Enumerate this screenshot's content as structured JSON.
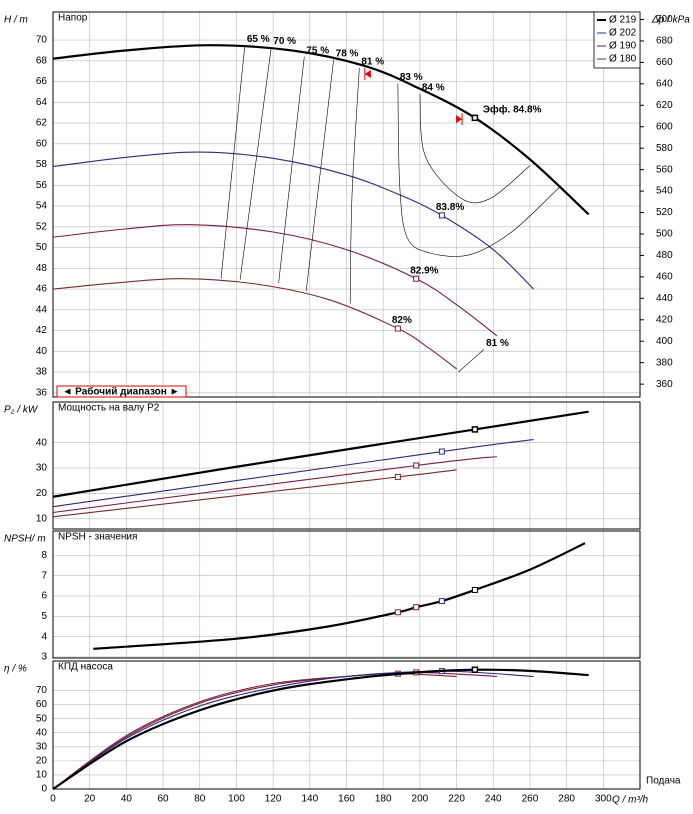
{
  "chart_data": [
    {
      "type": "line",
      "ylabel": "H / m",
      "title": "Напор",
      "y2label": "Δp / kPa",
      "ylim": [
        35.6,
        72.7
      ],
      "yticks": [
        36,
        38,
        40,
        42,
        44,
        46,
        48,
        50,
        52,
        54,
        56,
        58,
        60,
        62,
        64,
        66,
        68,
        70
      ],
      "y2lim": [
        348,
        707
      ],
      "y2ticks": [
        360,
        380,
        400,
        420,
        440,
        460,
        480,
        500,
        520,
        540,
        560,
        580,
        600,
        620,
        640,
        660,
        680,
        700
      ],
      "grid": true,
      "legend": "upper right",
      "range_label": "◄ Рабочий диапазон ►",
      "operating_range": [
        170,
        223
      ],
      "series": [
        {
          "name": "Ø 219",
          "color": "#000000",
          "width": 2,
          "x": [
            0,
            40,
            85,
            130,
            170,
            200,
            230,
            260,
            292
          ],
          "values": [
            68.2,
            69,
            69.5,
            69,
            67.5,
            65.3,
            62.5,
            58.5,
            53.2
          ],
          "marker_x": 230,
          "marker_value": 62.5,
          "marker_label": "Эфф.  84.8%"
        },
        {
          "name": "Ø 202",
          "color": "#2a2a80",
          "width": 1,
          "x": [
            0,
            40,
            80,
            120,
            160,
            190,
            212,
            240,
            262
          ],
          "values": [
            57.8,
            58.7,
            59.2,
            58.6,
            57,
            55,
            53.1,
            49.8,
            46
          ],
          "marker_x": 212,
          "marker_value": 53.1,
          "marker_label": "83.8%"
        },
        {
          "name": "Ø 190",
          "color": "#7a1a4a",
          "width": 1,
          "x": [
            0,
            40,
            75,
            120,
            160,
            198,
            220,
            242
          ],
          "values": [
            51,
            51.8,
            52.2,
            51.5,
            49.8,
            47,
            44.5,
            41.5
          ],
          "marker_x": 198,
          "marker_value": 47,
          "marker_label": "82.9%"
        },
        {
          "name": "Ø 180",
          "color": "#7a2a2a",
          "width": 1,
          "x": [
            0,
            35,
            70,
            110,
            150,
            188,
            205,
            220
          ],
          "values": [
            46,
            46.6,
            47,
            46.5,
            45,
            42.2,
            40.3,
            38.3
          ],
          "marker_x": 188,
          "marker_value": 42.2,
          "marker_label": "82%"
        }
      ],
      "iso_lines": [
        {
          "label": "65 %",
          "x": [
            104.6,
            91.6
          ],
          "values": [
            69.5,
            47.0
          ]
        },
        {
          "label": "70 %",
          "x": [
            119,
            102
          ],
          "values": [
            69.3,
            46.9
          ]
        },
        {
          "label": "75 %",
          "x": [
            137,
            123
          ],
          "values": [
            68.4,
            46.6
          ]
        },
        {
          "label": "78 %",
          "x": [
            153,
            138
          ],
          "values": [
            68.1,
            45.8
          ]
        },
        {
          "label": "81 %",
          "x": [
            167,
            163,
            162
          ],
          "values": [
            67.3,
            55,
            44.6
          ]
        },
        {
          "label": "83 %",
          "x": [
            188,
            189,
            193,
            205,
            227,
            250,
            276
          ],
          "values": [
            65.8,
            56,
            51,
            49.5,
            49.3,
            51.5,
            55.8
          ]
        },
        {
          "label": "84 %",
          "x": [
            200,
            203,
            222,
            238,
            260
          ],
          "values": [
            64.8,
            58.8,
            54.8,
            54.7,
            57.9
          ]
        },
        {
          "label": "81 %",
          "x": [
            221,
            235
          ],
          "values": [
            38.0,
            40.2
          ]
        }
      ]
    },
    {
      "type": "line",
      "ylabel": "P₂ / kW",
      "title": "Мощность на валу P2",
      "ylim": [
        6,
        56
      ],
      "yticks": [
        10,
        20,
        30,
        40
      ],
      "grid": true,
      "series": [
        {
          "color": "#000000",
          "width": 2,
          "x": [
            0,
            100,
            230,
            292
          ],
          "values": [
            18.7,
            30.5,
            45.2,
            52.2
          ],
          "marker_x": 230,
          "marker_value": 45.2
        },
        {
          "color": "#2a2a80",
          "width": 1,
          "x": [
            0,
            212,
            262
          ],
          "values": [
            14.8,
            36.5,
            41.2
          ],
          "marker_x": 212,
          "marker_value": 36.5
        },
        {
          "color": "#7a1a4a",
          "width": 1,
          "x": [
            0,
            198,
            242
          ],
          "values": [
            12.5,
            31,
            34.5
          ],
          "marker_x": 198,
          "marker_value": 31
        },
        {
          "color": "#7a2a2a",
          "width": 1,
          "x": [
            0,
            188,
            220
          ],
          "values": [
            10.8,
            26.5,
            29.3
          ],
          "marker_x": 188,
          "marker_value": 26.5
        }
      ]
    },
    {
      "type": "line",
      "ylabel": "NPSH/ m",
      "title": "NPSH - значения",
      "ylim": [
        2.95,
        9.2
      ],
      "yticks": [
        3,
        4,
        5,
        6,
        7,
        8
      ],
      "grid": true,
      "series": [
        {
          "color": "#000000",
          "width": 2,
          "x": [
            22,
            100,
            150,
            188,
            198,
            212,
            230,
            260,
            290
          ],
          "values": [
            3.4,
            3.9,
            4.5,
            5.2,
            5.45,
            5.75,
            6.3,
            7.3,
            8.6
          ]
        }
      ],
      "points": [
        {
          "color": "#7a2a2a",
          "x": 188,
          "value": 5.2
        },
        {
          "color": "#7a1a4a",
          "x": 198,
          "value": 5.45
        },
        {
          "color": "#2a2a80",
          "x": 212,
          "value": 5.75
        },
        {
          "color": "#000000",
          "x": 230,
          "value": 6.3
        }
      ]
    },
    {
      "type": "line",
      "ylabel": "η / %",
      "title": "КПД насоса",
      "xlabel": "Q / m³/h",
      "xcaption": "Подача",
      "xlim": [
        0,
        320
      ],
      "xticks": [
        0,
        20,
        40,
        60,
        80,
        100,
        120,
        140,
        160,
        180,
        200,
        220,
        240,
        260,
        280,
        300
      ],
      "ylim": [
        0,
        91
      ],
      "yticks": [
        0,
        10,
        20,
        30,
        40,
        50,
        60,
        70
      ],
      "grid": true,
      "series": [
        {
          "color": "#7a2a2a",
          "width": 1,
          "x": [
            0,
            40,
            80,
            120,
            160,
            188,
            220
          ],
          "values": [
            0,
            38,
            62,
            75,
            80,
            82,
            80
          ],
          "marker_x": 188,
          "marker_value": 82
        },
        {
          "color": "#7a1a4a",
          "width": 1,
          "x": [
            0,
            40,
            80,
            120,
            160,
            198,
            242
          ],
          "values": [
            0,
            37,
            61,
            74,
            80,
            82.9,
            80
          ],
          "marker_x": 198,
          "marker_value": 82.9
        },
        {
          "color": "#2a2a80",
          "width": 1,
          "x": [
            0,
            40,
            80,
            120,
            160,
            212,
            262
          ],
          "values": [
            0,
            36,
            59,
            72,
            80,
            83.8,
            80
          ],
          "marker_x": 212,
          "marker_value": 83.8
        },
        {
          "color": "#000000",
          "width": 2,
          "x": [
            0,
            40,
            80,
            120,
            160,
            200,
            230,
            260,
            292
          ],
          "values": [
            0,
            34,
            56,
            70,
            78,
            83,
            84.8,
            84,
            81
          ],
          "marker_x": 230,
          "marker_value": 84.8
        }
      ]
    }
  ]
}
